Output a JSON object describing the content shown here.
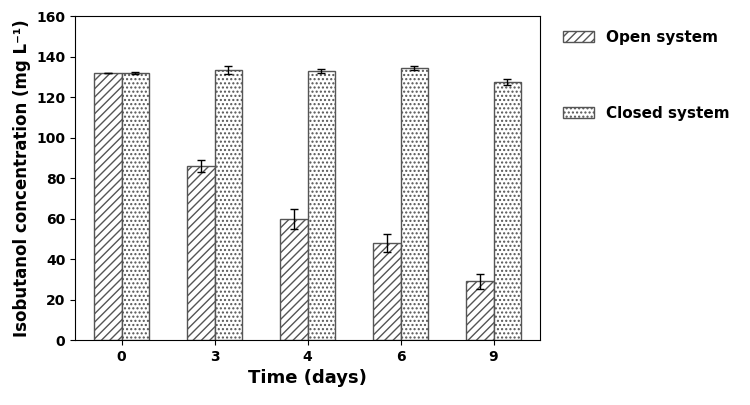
{
  "chart_data": {
    "type": "bar",
    "x_label": "Time (days)",
    "y_label": "Isobutanol concentration (mg L⁻¹)",
    "categories": [
      "0",
      "3",
      "4",
      "6",
      "9"
    ],
    "series": [
      {
        "name": "Open system",
        "color": "#ffffff",
        "values": [
          132,
          86,
          60,
          48,
          29
        ],
        "errors": [
          0,
          3,
          5,
          4.5,
          3.5
        ]
      },
      {
        "name": "Closed system",
        "color": "#ffffff",
        "values": [
          132,
          133.5,
          133,
          134.5,
          127.5
        ],
        "errors": [
          0.5,
          2,
          1,
          1,
          1.5
        ]
      }
    ],
    "ylim": [
      0,
      160
    ],
    "yticks": [
      0,
      20,
      40,
      60,
      80,
      100,
      120,
      140,
      160
    ],
    "grid": false,
    "legend": "right"
  }
}
